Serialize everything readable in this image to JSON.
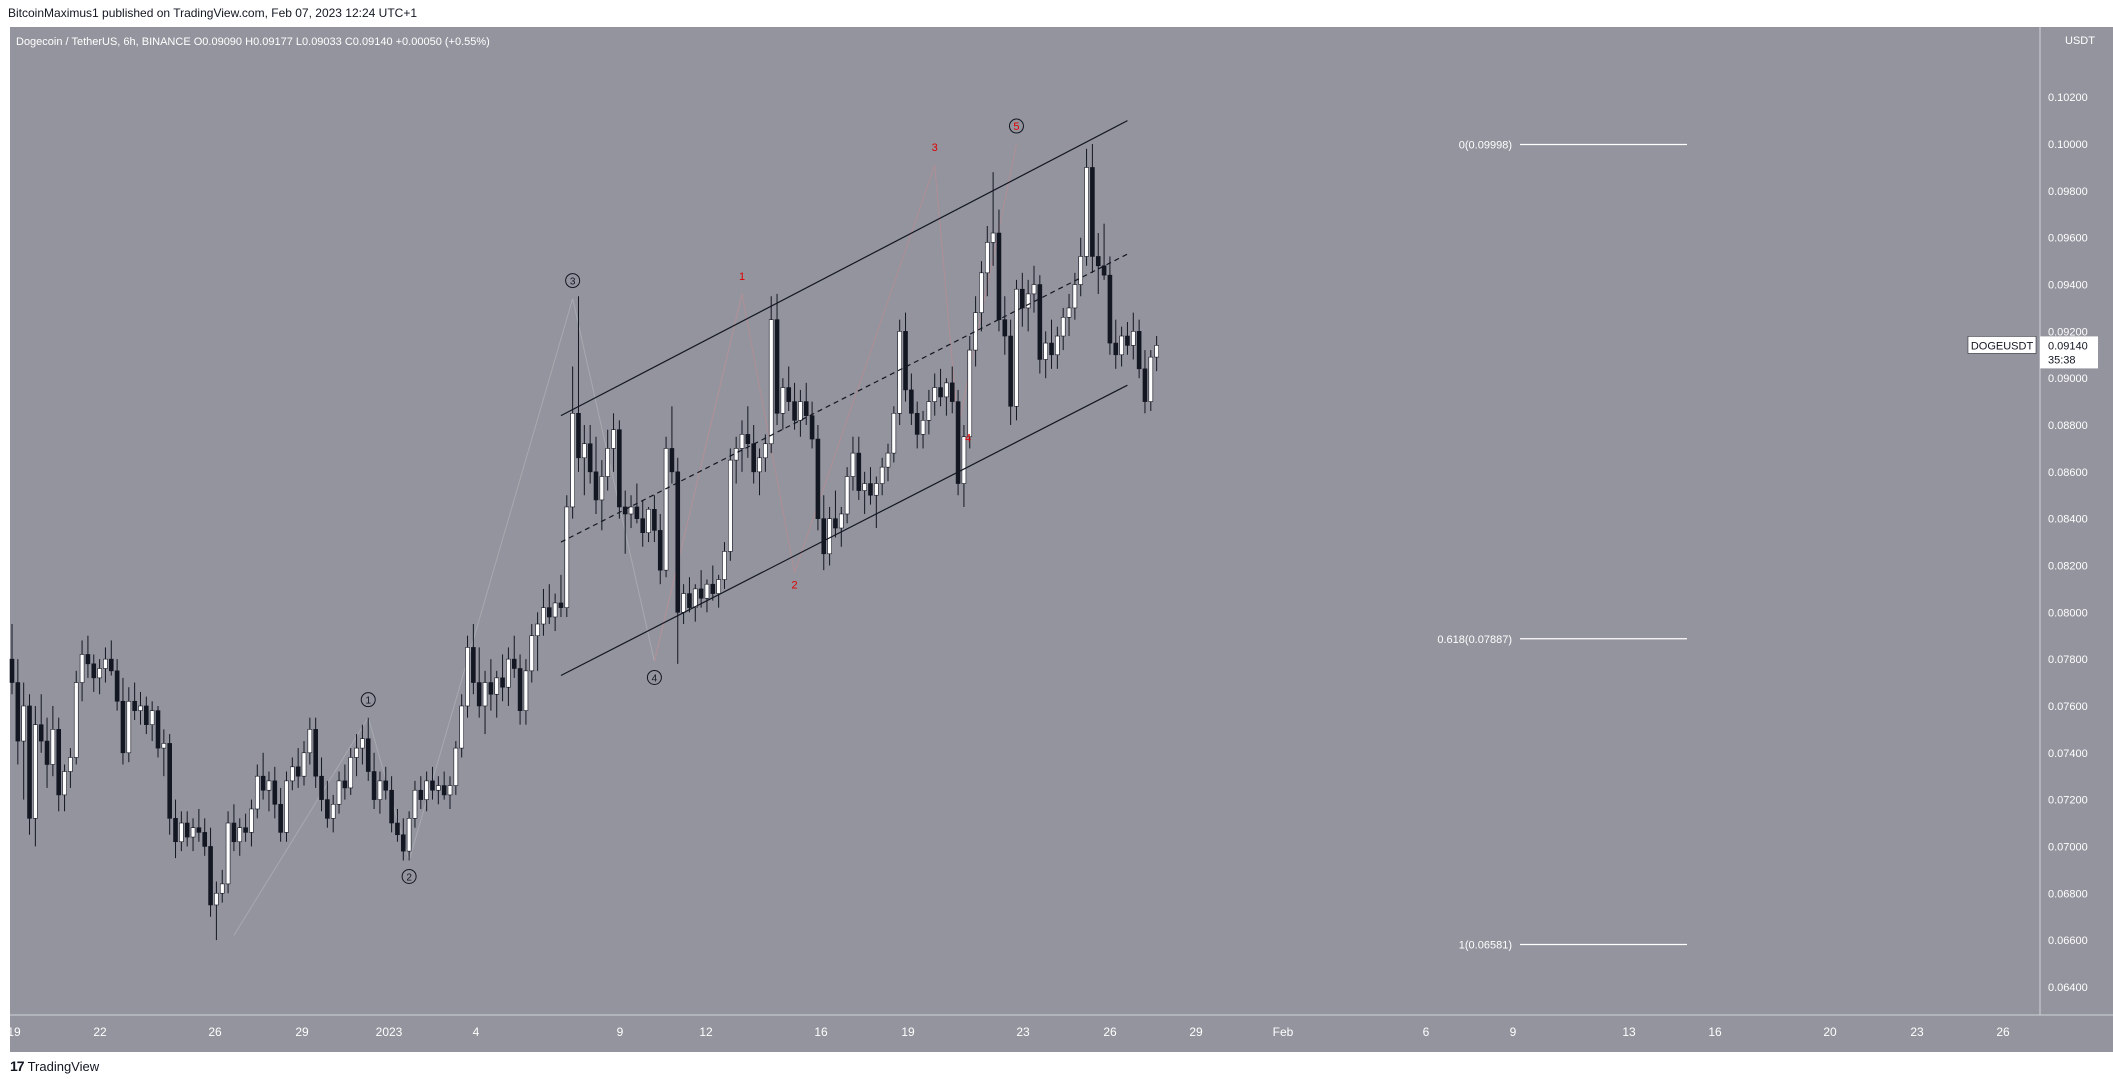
{
  "header": {
    "publisher": "BitcoinMaximus1 published on TradingView.com, Feb 07, 2023 12:24 UTC+1"
  },
  "footer": {
    "brand": "TradingView",
    "logo_glyph": "17"
  },
  "colors": {
    "background": "#93949d",
    "bull_candle": "#ffffff",
    "bear_candle": "#131722",
    "channel": "#131722",
    "fib_line": "#ffffff",
    "wave_label": "#e00000"
  },
  "chart_data": {
    "type": "candlestick",
    "symbol_line": {
      "name": "Dogecoin / TetherUS, 6h, BINANCE",
      "o_label": "O",
      "o": "0.09090",
      "h_label": "H",
      "h": "0.09177",
      "l_label": "L",
      "l": "0.09033",
      "c_label": "C",
      "c": "0.09140",
      "change": "+0.00050 (+0.55%)"
    },
    "y_axis": {
      "unit": "USDT",
      "range": [
        0.0628,
        0.105
      ],
      "ticks": [
        "0.10200",
        "0.10000",
        "0.09800",
        "0.09600",
        "0.09400",
        "0.09200",
        "0.09000",
        "0.08800",
        "0.08600",
        "0.08400",
        "0.08200",
        "0.08000",
        "0.07800",
        "0.07600",
        "0.07400",
        "0.07200",
        "0.07000",
        "0.06800",
        "0.06600",
        "0.06400"
      ]
    },
    "x_axis": {
      "ticks": [
        "19",
        "22",
        "26",
        "29",
        "2023",
        "4",
        "9",
        "12",
        "16",
        "19",
        "23",
        "26",
        "29",
        "Feb",
        "6",
        "9",
        "13",
        "16",
        "20",
        "23",
        "26"
      ]
    },
    "price_tag": {
      "symbol": "DOGEUSDT",
      "price": "0.09140",
      "countdown": "35:38"
    },
    "fib_levels": [
      {
        "label": "0(0.09998)",
        "value": 0.09998
      },
      {
        "label": "0.618(0.07887)",
        "value": 0.07887
      },
      {
        "label": "1(0.06581)",
        "value": 0.06581
      }
    ],
    "channel": {
      "upper": [
        {
          "bar": 94,
          "price": 0.0884
        },
        {
          "bar": 191,
          "price": 0.101
        }
      ],
      "middle": [
        {
          "bar": 94,
          "price": 0.083
        },
        {
          "bar": 191,
          "price": 0.0953
        }
      ],
      "lower": [
        {
          "bar": 94,
          "price": 0.0773
        },
        {
          "bar": 191,
          "price": 0.0897
        }
      ]
    },
    "major_waves": [
      {
        "label": "1",
        "bar": 61,
        "price": 0.0755
      },
      {
        "label": "2",
        "bar": 68,
        "price": 0.0694
      },
      {
        "label": "3",
        "bar": 96,
        "price": 0.0934
      },
      {
        "label": "4",
        "bar": 110,
        "price": 0.0779
      }
    ],
    "minor_waves": [
      {
        "label": "1",
        "bar": 125,
        "price": 0.0936
      },
      {
        "label": "2",
        "bar": 134,
        "price": 0.0817
      },
      {
        "label": "3",
        "bar": 158,
        "price": 0.0991
      },
      {
        "label": "4",
        "bar": 162,
        "price": 0.0879
      },
      {
        "label": "5",
        "bar": 172,
        "price": 0.1
      }
    ],
    "candles": [
      [
        0.078,
        0.0795,
        0.0765,
        0.077
      ],
      [
        0.077,
        0.078,
        0.0735,
        0.0745
      ],
      [
        0.0745,
        0.077,
        0.072,
        0.076
      ],
      [
        0.076,
        0.0765,
        0.0705,
        0.0712
      ],
      [
        0.0712,
        0.076,
        0.07,
        0.0752
      ],
      [
        0.0752,
        0.0765,
        0.074,
        0.0745
      ],
      [
        0.0745,
        0.0755,
        0.0725,
        0.0735
      ],
      [
        0.0735,
        0.076,
        0.073,
        0.075
      ],
      [
        0.075,
        0.0755,
        0.0715,
        0.0722
      ],
      [
        0.0722,
        0.0735,
        0.0715,
        0.0732
      ],
      [
        0.0732,
        0.0742,
        0.0725,
        0.0738
      ],
      [
        0.0738,
        0.0775,
        0.0735,
        0.077
      ],
      [
        0.077,
        0.0788,
        0.0762,
        0.0782
      ],
      [
        0.0782,
        0.079,
        0.0772,
        0.0778
      ],
      [
        0.0778,
        0.0782,
        0.0766,
        0.0772
      ],
      [
        0.0772,
        0.078,
        0.0765,
        0.0776
      ],
      [
        0.0776,
        0.0785,
        0.077,
        0.078
      ],
      [
        0.078,
        0.0788,
        0.0773,
        0.0775
      ],
      [
        0.0775,
        0.078,
        0.0758,
        0.0762
      ],
      [
        0.0762,
        0.0772,
        0.0735,
        0.074
      ],
      [
        0.074,
        0.0768,
        0.0736,
        0.0762
      ],
      [
        0.0762,
        0.077,
        0.0754,
        0.0758
      ],
      [
        0.0758,
        0.0766,
        0.0752,
        0.076
      ],
      [
        0.076,
        0.0764,
        0.0748,
        0.0752
      ],
      [
        0.0752,
        0.0762,
        0.0745,
        0.0758
      ],
      [
        0.0758,
        0.076,
        0.0738,
        0.0742
      ],
      [
        0.0742,
        0.075,
        0.073,
        0.0744
      ],
      [
        0.0744,
        0.0748,
        0.0705,
        0.0712
      ],
      [
        0.0712,
        0.072,
        0.0695,
        0.0702
      ],
      [
        0.0702,
        0.0715,
        0.0698,
        0.071
      ],
      [
        0.071,
        0.0715,
        0.07,
        0.0704
      ],
      [
        0.0704,
        0.0712,
        0.0698,
        0.0708
      ],
      [
        0.0708,
        0.0716,
        0.0702,
        0.0706
      ],
      [
        0.0706,
        0.0712,
        0.0696,
        0.07
      ],
      [
        0.07,
        0.0708,
        0.067,
        0.0675
      ],
      [
        0.0675,
        0.0685,
        0.066,
        0.068
      ],
      [
        0.068,
        0.069,
        0.0676,
        0.0684
      ],
      [
        0.0684,
        0.0715,
        0.068,
        0.071
      ],
      [
        0.071,
        0.0718,
        0.0698,
        0.0702
      ],
      [
        0.0702,
        0.0712,
        0.0696,
        0.0708
      ],
      [
        0.0708,
        0.0714,
        0.0702,
        0.0706
      ],
      [
        0.0706,
        0.072,
        0.07,
        0.0716
      ],
      [
        0.0716,
        0.0735,
        0.0712,
        0.073
      ],
      [
        0.073,
        0.074,
        0.072,
        0.0724
      ],
      [
        0.0724,
        0.0732,
        0.0715,
        0.0728
      ],
      [
        0.0728,
        0.0734,
        0.0712,
        0.0718
      ],
      [
        0.0718,
        0.0725,
        0.0702,
        0.0706
      ],
      [
        0.0706,
        0.0732,
        0.0702,
        0.0728
      ],
      [
        0.0728,
        0.0738,
        0.0724,
        0.0734
      ],
      [
        0.0734,
        0.0742,
        0.0725,
        0.073
      ],
      [
        0.073,
        0.0745,
        0.0726,
        0.074
      ],
      [
        0.074,
        0.0755,
        0.0735,
        0.075
      ],
      [
        0.075,
        0.0755,
        0.0725,
        0.073
      ],
      [
        0.073,
        0.0738,
        0.0715,
        0.072
      ],
      [
        0.072,
        0.0728,
        0.0708,
        0.0712
      ],
      [
        0.0712,
        0.0722,
        0.0706,
        0.0718
      ],
      [
        0.0718,
        0.0732,
        0.0714,
        0.0728
      ],
      [
        0.0728,
        0.0735,
        0.072,
        0.0725
      ],
      [
        0.0725,
        0.0742,
        0.0722,
        0.0738
      ],
      [
        0.0738,
        0.0748,
        0.073,
        0.0742
      ],
      [
        0.0742,
        0.0752,
        0.0735,
        0.0746
      ],
      [
        0.0746,
        0.0755,
        0.0728,
        0.0732
      ],
      [
        0.0732,
        0.074,
        0.0716,
        0.072
      ],
      [
        0.072,
        0.0732,
        0.0714,
        0.0728
      ],
      [
        0.0728,
        0.0734,
        0.072,
        0.0724
      ],
      [
        0.0724,
        0.073,
        0.0706,
        0.071
      ],
      [
        0.071,
        0.0716,
        0.0702,
        0.0705
      ],
      [
        0.0705,
        0.0712,
        0.0694,
        0.0698
      ],
      [
        0.0698,
        0.0715,
        0.0694,
        0.0712
      ],
      [
        0.0712,
        0.0728,
        0.0708,
        0.0724
      ],
      [
        0.0724,
        0.073,
        0.0716,
        0.072
      ],
      [
        0.072,
        0.0732,
        0.0715,
        0.0728
      ],
      [
        0.0728,
        0.0734,
        0.072,
        0.0724
      ],
      [
        0.0724,
        0.073,
        0.0718,
        0.0726
      ],
      [
        0.0726,
        0.0732,
        0.072,
        0.0722
      ],
      [
        0.0722,
        0.073,
        0.0716,
        0.0726
      ],
      [
        0.0726,
        0.0745,
        0.0722,
        0.0742
      ],
      [
        0.0742,
        0.0765,
        0.0738,
        0.076
      ],
      [
        0.076,
        0.079,
        0.0755,
        0.0785
      ],
      [
        0.0785,
        0.0795,
        0.0765,
        0.077
      ],
      [
        0.077,
        0.0785,
        0.0755,
        0.076
      ],
      [
        0.076,
        0.0775,
        0.0748,
        0.077
      ],
      [
        0.077,
        0.078,
        0.0758,
        0.0765
      ],
      [
        0.0765,
        0.0775,
        0.0755,
        0.0772
      ],
      [
        0.0772,
        0.0782,
        0.0762,
        0.0768
      ],
      [
        0.0768,
        0.0785,
        0.076,
        0.078
      ],
      [
        0.078,
        0.079,
        0.0772,
        0.0776
      ],
      [
        0.0776,
        0.0782,
        0.0752,
        0.0758
      ],
      [
        0.0758,
        0.078,
        0.0752,
        0.0775
      ],
      [
        0.0775,
        0.0795,
        0.077,
        0.079
      ],
      [
        0.079,
        0.08,
        0.0775,
        0.0795
      ],
      [
        0.0795,
        0.081,
        0.079,
        0.0802
      ],
      [
        0.0802,
        0.0812,
        0.0795,
        0.0798
      ],
      [
        0.0798,
        0.0808,
        0.0792,
        0.0804
      ],
      [
        0.0804,
        0.0816,
        0.0798,
        0.0802
      ],
      [
        0.0802,
        0.085,
        0.0798,
        0.0845
      ],
      [
        0.0845,
        0.0905,
        0.084,
        0.0885
      ],
      [
        0.0885,
        0.0935,
        0.086,
        0.0866
      ],
      [
        0.0866,
        0.088,
        0.085,
        0.0872
      ],
      [
        0.0872,
        0.088,
        0.0855,
        0.086
      ],
      [
        0.086,
        0.0875,
        0.0842,
        0.0848
      ],
      [
        0.0848,
        0.0865,
        0.0835,
        0.0858
      ],
      [
        0.0858,
        0.0878,
        0.0852,
        0.087
      ],
      [
        0.087,
        0.0885,
        0.086,
        0.0878
      ],
      [
        0.0878,
        0.0882,
        0.084,
        0.0845
      ],
      [
        0.0845,
        0.0852,
        0.0825,
        0.0842
      ],
      [
        0.0842,
        0.085,
        0.0836,
        0.0845
      ],
      [
        0.0845,
        0.0855,
        0.0838,
        0.084
      ],
      [
        0.084,
        0.0848,
        0.0828,
        0.0834
      ],
      [
        0.0834,
        0.0845,
        0.083,
        0.0844
      ],
      [
        0.0844,
        0.085,
        0.083,
        0.0835
      ],
      [
        0.0835,
        0.0842,
        0.0812,
        0.0818
      ],
      [
        0.0818,
        0.0875,
        0.0815,
        0.087
      ],
      [
        0.087,
        0.0888,
        0.0855,
        0.086
      ],
      [
        0.086,
        0.0866,
        0.0778,
        0.08
      ],
      [
        0.08,
        0.0812,
        0.0795,
        0.0808
      ],
      [
        0.0808,
        0.0815,
        0.08,
        0.0802
      ],
      [
        0.0802,
        0.0812,
        0.0796,
        0.081
      ],
      [
        0.081,
        0.0818,
        0.0802,
        0.0806
      ],
      [
        0.0806,
        0.0814,
        0.08,
        0.0812
      ],
      [
        0.0812,
        0.082,
        0.0805,
        0.0808
      ],
      [
        0.0808,
        0.0816,
        0.0802,
        0.0814
      ],
      [
        0.0814,
        0.083,
        0.081,
        0.0826
      ],
      [
        0.0826,
        0.087,
        0.0822,
        0.0865
      ],
      [
        0.0865,
        0.0875,
        0.0855,
        0.087
      ],
      [
        0.087,
        0.0882,
        0.086,
        0.0876
      ],
      [
        0.0876,
        0.0888,
        0.0866,
        0.0872
      ],
      [
        0.0872,
        0.088,
        0.0855,
        0.086
      ],
      [
        0.086,
        0.087,
        0.085,
        0.0866
      ],
      [
        0.0866,
        0.0876,
        0.086,
        0.0872
      ],
      [
        0.0872,
        0.0935,
        0.0868,
        0.0925
      ],
      [
        0.0925,
        0.0936,
        0.088,
        0.0885
      ],
      [
        0.0885,
        0.09,
        0.0878,
        0.0896
      ],
      [
        0.0896,
        0.0905,
        0.0886,
        0.089
      ],
      [
        0.089,
        0.0898,
        0.0878,
        0.0882
      ],
      [
        0.0882,
        0.0895,
        0.0875,
        0.089
      ],
      [
        0.089,
        0.0898,
        0.088,
        0.0884
      ],
      [
        0.0884,
        0.089,
        0.087,
        0.0874
      ],
      [
        0.0874,
        0.088,
        0.0835,
        0.084
      ],
      [
        0.084,
        0.085,
        0.0818,
        0.0825
      ],
      [
        0.0825,
        0.0845,
        0.082,
        0.084
      ],
      [
        0.084,
        0.0852,
        0.0832,
        0.0836
      ],
      [
        0.0836,
        0.0845,
        0.0828,
        0.0842
      ],
      [
        0.0842,
        0.0862,
        0.0838,
        0.0858
      ],
      [
        0.0858,
        0.0875,
        0.0852,
        0.0868
      ],
      [
        0.0868,
        0.0875,
        0.0848,
        0.0852
      ],
      [
        0.0852,
        0.086,
        0.0842,
        0.0855
      ],
      [
        0.0855,
        0.0862,
        0.0846,
        0.085
      ],
      [
        0.085,
        0.0858,
        0.0836,
        0.0855
      ],
      [
        0.0855,
        0.0866,
        0.085,
        0.0862
      ],
      [
        0.0862,
        0.0872,
        0.0856,
        0.0868
      ],
      [
        0.0868,
        0.0888,
        0.0864,
        0.0885
      ],
      [
        0.0885,
        0.0925,
        0.088,
        0.092
      ],
      [
        0.092,
        0.0928,
        0.089,
        0.0895
      ],
      [
        0.0895,
        0.0902,
        0.088,
        0.0885
      ],
      [
        0.0885,
        0.089,
        0.087,
        0.0876
      ],
      [
        0.0876,
        0.0886,
        0.087,
        0.0882
      ],
      [
        0.0882,
        0.0895,
        0.0876,
        0.089
      ],
      [
        0.089,
        0.0902,
        0.0884,
        0.0896
      ],
      [
        0.0896,
        0.0904,
        0.0888,
        0.0892
      ],
      [
        0.0892,
        0.09,
        0.0884,
        0.0898
      ],
      [
        0.0898,
        0.0905,
        0.0885,
        0.089
      ],
      [
        0.089,
        0.0895,
        0.085,
        0.0855
      ],
      [
        0.0855,
        0.088,
        0.0845,
        0.0875
      ],
      [
        0.0875,
        0.0918,
        0.087,
        0.0912
      ],
      [
        0.0912,
        0.0935,
        0.0905,
        0.0928
      ],
      [
        0.0928,
        0.095,
        0.092,
        0.0945
      ],
      [
        0.0945,
        0.0965,
        0.0935,
        0.0958
      ],
      [
        0.0958,
        0.0988,
        0.0948,
        0.0962
      ],
      [
        0.0962,
        0.0972,
        0.092,
        0.0925
      ],
      [
        0.0925,
        0.0935,
        0.091,
        0.0918
      ],
      [
        0.0918,
        0.0925,
        0.088,
        0.0888
      ],
      [
        0.0888,
        0.0942,
        0.0882,
        0.0938
      ],
      [
        0.0938,
        0.0945,
        0.0922,
        0.093
      ],
      [
        0.093,
        0.0942,
        0.092,
        0.0936
      ],
      [
        0.0936,
        0.0948,
        0.0928,
        0.094
      ],
      [
        0.094,
        0.0944,
        0.0902,
        0.0908
      ],
      [
        0.0908,
        0.092,
        0.09,
        0.0915
      ],
      [
        0.0915,
        0.0925,
        0.0904,
        0.091
      ],
      [
        0.091,
        0.0922,
        0.0904,
        0.0918
      ],
      [
        0.0918,
        0.093,
        0.0912,
        0.0926
      ],
      [
        0.0926,
        0.0936,
        0.0918,
        0.093
      ],
      [
        0.093,
        0.0945,
        0.0925,
        0.094
      ],
      [
        0.094,
        0.096,
        0.0935,
        0.0952
      ],
      [
        0.0952,
        0.0998,
        0.0948,
        0.099
      ],
      [
        0.099,
        0.1,
        0.0945,
        0.0952
      ],
      [
        0.0952,
        0.0962,
        0.0936,
        0.0948
      ],
      [
        0.0948,
        0.0966,
        0.0942,
        0.0944
      ],
      [
        0.0944,
        0.0952,
        0.091,
        0.0915
      ],
      [
        0.0915,
        0.0925,
        0.0904,
        0.091
      ],
      [
        0.091,
        0.0922,
        0.0905,
        0.0918
      ],
      [
        0.0918,
        0.0924,
        0.091,
        0.0914
      ],
      [
        0.0914,
        0.0928,
        0.0908,
        0.092
      ],
      [
        0.092,
        0.0925,
        0.09,
        0.0904
      ],
      [
        0.0904,
        0.0912,
        0.0885,
        0.089
      ],
      [
        0.089,
        0.0912,
        0.0886,
        0.0909
      ],
      [
        0.0909,
        0.0918,
        0.0903,
        0.0914
      ]
    ]
  }
}
